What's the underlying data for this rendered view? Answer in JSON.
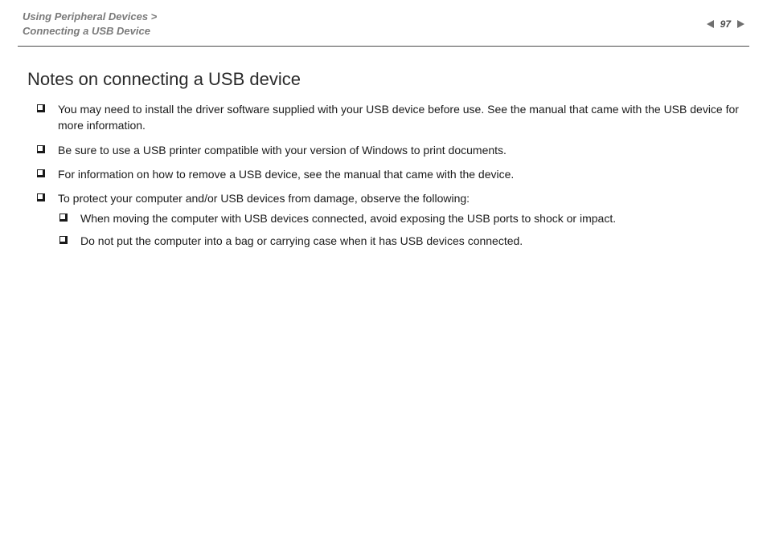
{
  "header": {
    "breadcrumb_line1": "Using Peripheral Devices >",
    "breadcrumb_line2": "Connecting a USB Device",
    "page_number": "97"
  },
  "content": {
    "title": "Notes on connecting a USB device",
    "notes": [
      {
        "text": "You may need to install the driver software supplied with your USB device before use. See the manual that came with the USB device for more information."
      },
      {
        "text": "Be sure to use a USB printer compatible with your version of Windows to print documents."
      },
      {
        "text": "For information on how to remove a USB device, see the manual that came with the device."
      },
      {
        "text": "To protect your computer and/or USB devices from damage, observe the following:",
        "sub": [
          {
            "text": "When moving the computer with USB devices connected, avoid exposing the USB ports to shock or impact."
          },
          {
            "text": "Do not put the computer into a bag or carrying case when it has USB devices connected."
          }
        ]
      }
    ]
  },
  "style": {
    "text_color": "#1a1a1a",
    "muted_color": "#7a7a7a",
    "arrow_color": "#6f6f6f",
    "hr_color": "#4a4a4a",
    "title_fontsize": 22,
    "body_fontsize": 14,
    "breadcrumb_fontsize": 13
  }
}
